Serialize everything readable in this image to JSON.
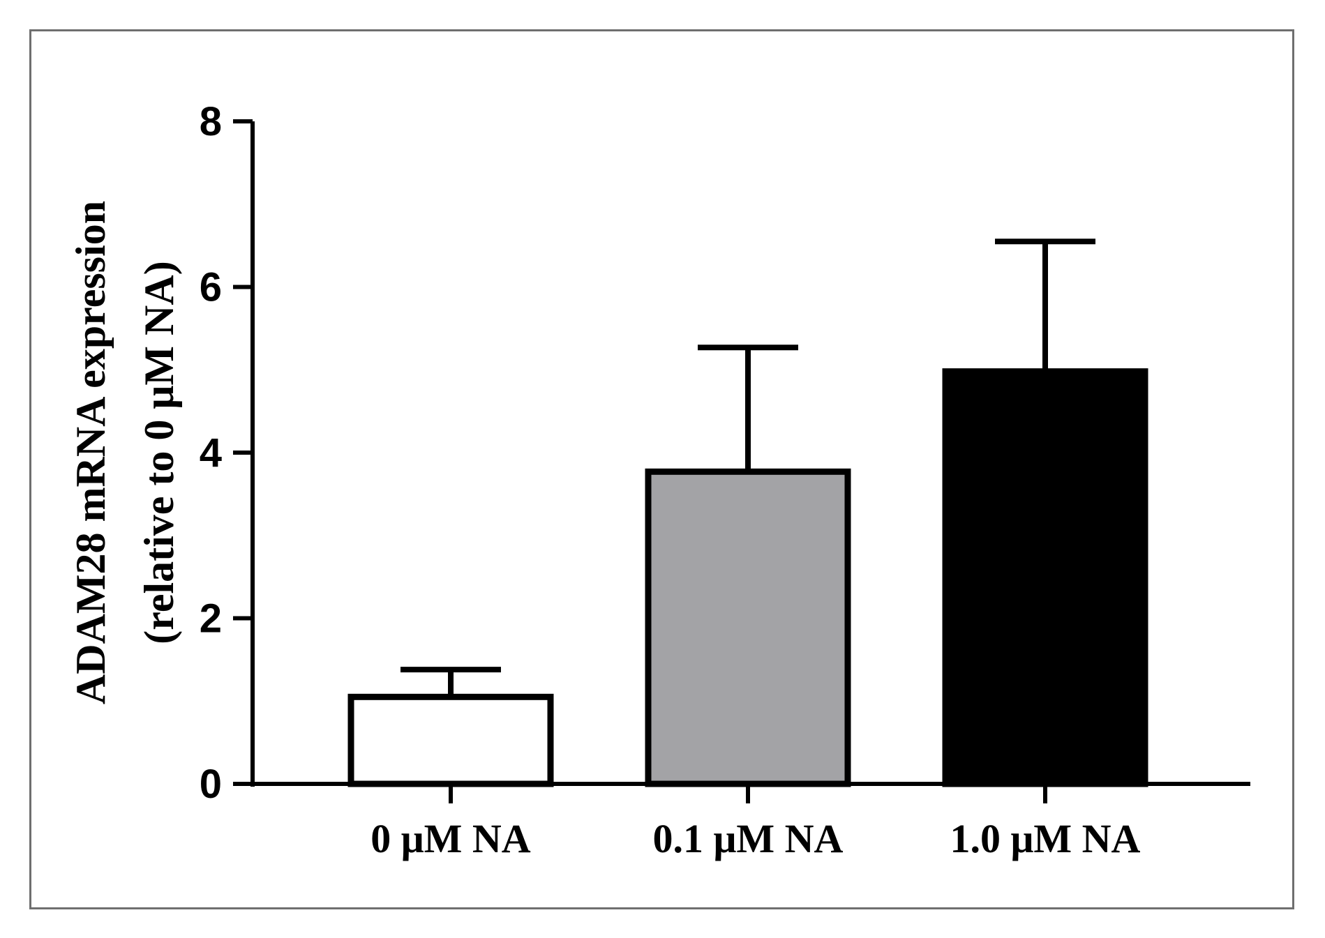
{
  "chart_data": {
    "type": "bar",
    "title": "",
    "xlabel": "",
    "ylabel": "ADAM28 mRNA expression",
    "ylabel_line2": "(relative to 0 μM NA)",
    "categories": [
      "0 μM NA",
      "0.1 μM NA",
      "1.0 μM NA"
    ],
    "values": [
      1.05,
      3.77,
      4.98
    ],
    "error_upper": [
      0.33,
      1.5,
      1.57
    ],
    "bar_fill_colors": [
      "#ffffff",
      "#a3a3a6",
      "#000000"
    ],
    "bar_stroke_color": "#000000",
    "ylim": [
      0,
      8
    ],
    "yticks": [
      0,
      2,
      4,
      6,
      8
    ],
    "ytick_labels": [
      "0",
      "2",
      "4",
      "6",
      "8"
    ],
    "grid": false,
    "legend": "none"
  }
}
